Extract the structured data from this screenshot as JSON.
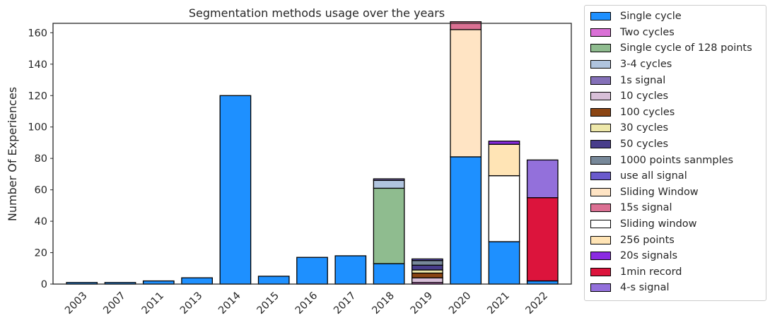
{
  "chart_data": {
    "type": "bar",
    "stacked": true,
    "title": "Segmentation methods usage over the years",
    "xlabel": "",
    "ylabel": "Number Of Experiences",
    "ylim": [
      0,
      166
    ],
    "yticks": [
      0,
      20,
      40,
      60,
      80,
      100,
      120,
      140,
      160
    ],
    "grid": false,
    "legend_position": "outside-right",
    "categories": [
      "2003",
      "2007",
      "2011",
      "2013",
      "2014",
      "2015",
      "2016",
      "2017",
      "2018",
      "2019",
      "2020",
      "2021",
      "2022"
    ],
    "series": [
      {
        "name": "Single cycle",
        "color": "#1e90ff",
        "values": [
          1,
          1,
          2,
          4,
          120,
          5,
          17,
          18,
          13,
          0,
          81,
          27,
          2
        ]
      },
      {
        "name": "Two cycles",
        "color": "#da70d6",
        "values": [
          0,
          0,
          0,
          0,
          0,
          0,
          0,
          0,
          0,
          1,
          0,
          0,
          0
        ]
      },
      {
        "name": "Single cycle of 128 points",
        "color": "#8fbc8f",
        "values": [
          0,
          0,
          0,
          0,
          0,
          0,
          0,
          0,
          48,
          0,
          0,
          0,
          0
        ]
      },
      {
        "name": "3-4 cycles",
        "color": "#b0c4de",
        "values": [
          0,
          0,
          0,
          0,
          0,
          0,
          0,
          0,
          5,
          0,
          0,
          0,
          0
        ]
      },
      {
        "name": "1s signal",
        "color": "#8470b8",
        "values": [
          0,
          0,
          0,
          0,
          0,
          0,
          0,
          0,
          1,
          0,
          0,
          0,
          0
        ]
      },
      {
        "name": "10 cycles",
        "color": "#d8bfd8",
        "values": [
          0,
          0,
          0,
          0,
          0,
          0,
          0,
          0,
          0,
          3,
          0,
          0,
          0
        ]
      },
      {
        "name": "100 cycles",
        "color": "#8b4513",
        "values": [
          0,
          0,
          0,
          0,
          0,
          0,
          0,
          0,
          0,
          3,
          0,
          0,
          0
        ]
      },
      {
        "name": "30 cycles",
        "color": "#eee8aa",
        "values": [
          0,
          0,
          0,
          0,
          0,
          0,
          0,
          0,
          0,
          2,
          0,
          0,
          0
        ]
      },
      {
        "name": "50 cycles",
        "color": "#483d8b",
        "values": [
          0,
          0,
          0,
          0,
          0,
          0,
          0,
          0,
          0,
          3,
          0,
          0,
          0
        ]
      },
      {
        "name": "1000 points sanmples",
        "color": "#778899",
        "values": [
          0,
          0,
          0,
          0,
          0,
          0,
          0,
          0,
          0,
          3,
          0,
          0,
          0
        ]
      },
      {
        "name": "use all signal",
        "color": "#6a5acd",
        "values": [
          0,
          0,
          0,
          0,
          0,
          0,
          0,
          0,
          0,
          1,
          0,
          0,
          0
        ]
      },
      {
        "name": "Sliding Window",
        "color": "#ffe4c4",
        "values": [
          0,
          0,
          0,
          0,
          0,
          0,
          0,
          0,
          0,
          0,
          81,
          0,
          0
        ]
      },
      {
        "name": "15s signal",
        "color": "#db7093",
        "values": [
          0,
          0,
          0,
          0,
          0,
          0,
          0,
          0,
          0,
          0,
          5,
          0,
          0
        ]
      },
      {
        "name": "Sliding window",
        "color": "#ffffff",
        "values": [
          0,
          0,
          0,
          0,
          0,
          0,
          0,
          0,
          0,
          0,
          0,
          42,
          0
        ]
      },
      {
        "name": "256 points",
        "color": "#ffe4b5",
        "values": [
          0,
          0,
          0,
          0,
          0,
          0,
          0,
          0,
          0,
          0,
          0,
          20,
          0
        ]
      },
      {
        "name": "20s signals",
        "color": "#8a2be2",
        "values": [
          0,
          0,
          0,
          0,
          0,
          0,
          0,
          0,
          0,
          0,
          0,
          2,
          0
        ]
      },
      {
        "name": "1min record",
        "color": "#dc143c",
        "values": [
          0,
          0,
          0,
          0,
          0,
          0,
          0,
          0,
          0,
          0,
          0,
          0,
          53
        ]
      },
      {
        "name": "4-s signal",
        "color": "#9370db",
        "values": [
          0,
          0,
          0,
          0,
          0,
          0,
          0,
          0,
          0,
          0,
          0,
          0,
          24
        ]
      }
    ]
  }
}
